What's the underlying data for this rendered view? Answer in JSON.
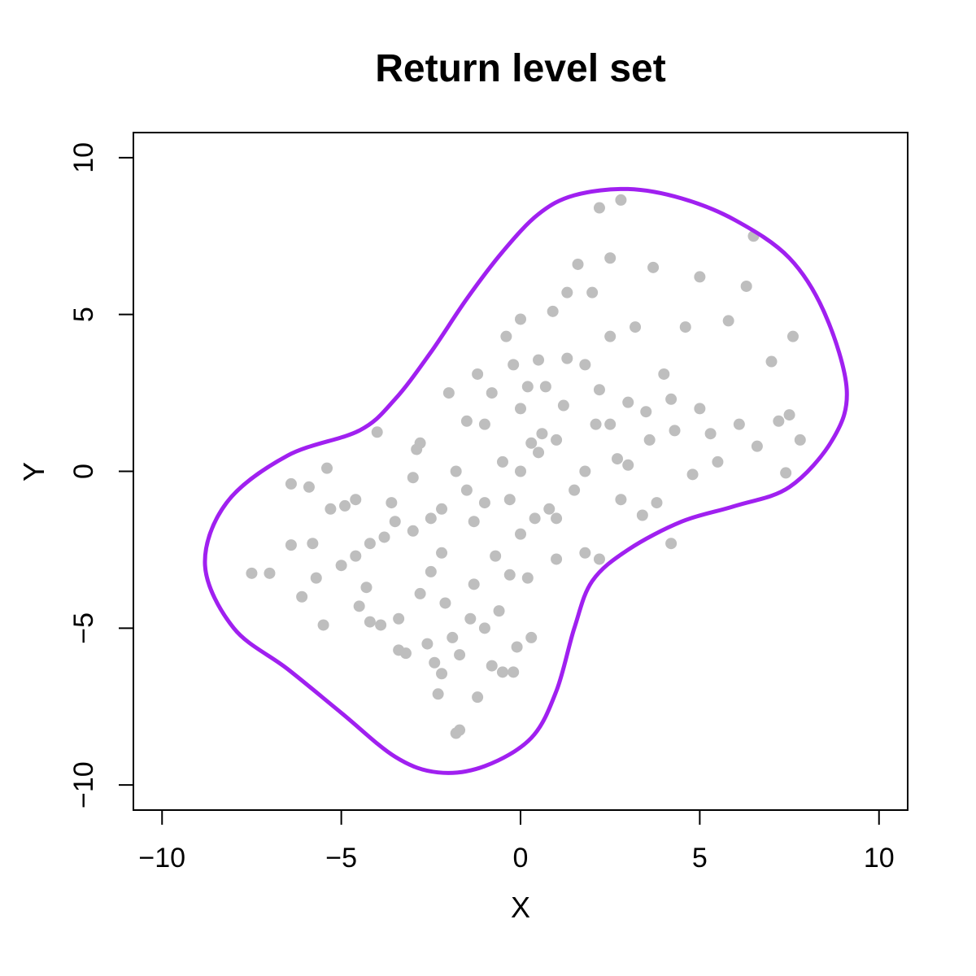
{
  "chart_data": {
    "type": "scatter",
    "title": "Return level set",
    "xlabel": "X",
    "ylabel": "Y",
    "xlim": [
      -10.8,
      10.8
    ],
    "ylim": [
      -10.8,
      10.8
    ],
    "x_ticks": [
      -10,
      -5,
      0,
      5,
      10
    ],
    "y_ticks": [
      -10,
      -5,
      0,
      5,
      10
    ],
    "x_tick_labels": [
      "−10",
      "−5",
      "0",
      "5",
      "10"
    ],
    "y_tick_labels": [
      "−10",
      "−5",
      "0",
      "5",
      "10"
    ],
    "grid": false,
    "colors": {
      "points": "#bebebe",
      "contour": "#a020f0",
      "frame": "#000000"
    },
    "series": [
      {
        "kind": "points",
        "points": [
          [
            -7.5,
            -3.25
          ],
          [
            -7.0,
            -3.25
          ],
          [
            -6.4,
            -0.4
          ],
          [
            -6.4,
            -2.35
          ],
          [
            -6.1,
            -4.0
          ],
          [
            -5.9,
            -0.5
          ],
          [
            -5.8,
            -2.3
          ],
          [
            -5.7,
            -3.4
          ],
          [
            -5.5,
            -4.9
          ],
          [
            -5.4,
            0.1
          ],
          [
            -5.3,
            -1.2
          ],
          [
            -5.0,
            -3.0
          ],
          [
            -4.9,
            -1.1
          ],
          [
            -4.6,
            -0.9
          ],
          [
            -4.6,
            -2.7
          ],
          [
            -4.5,
            -4.3
          ],
          [
            -4.3,
            -3.7
          ],
          [
            -4.2,
            -4.8
          ],
          [
            -4.0,
            1.25
          ],
          [
            -3.9,
            -4.9
          ],
          [
            -3.8,
            -2.1
          ],
          [
            -3.5,
            -1.6
          ],
          [
            -3.4,
            -4.7
          ],
          [
            -3.4,
            -5.7
          ],
          [
            -3.2,
            -5.8
          ],
          [
            -3.0,
            -1.9
          ],
          [
            -2.9,
            0.7
          ],
          [
            -2.8,
            -3.9
          ],
          [
            -2.6,
            -5.5
          ],
          [
            -2.5,
            -3.2
          ],
          [
            -2.4,
            -6.1
          ],
          [
            -2.3,
            -7.1
          ],
          [
            -2.2,
            -6.45
          ],
          [
            -2.2,
            -1.2
          ],
          [
            -2.1,
            -4.2
          ],
          [
            -2.0,
            2.5
          ],
          [
            -1.9,
            -5.3
          ],
          [
            -1.8,
            -8.35
          ],
          [
            -1.7,
            -8.25
          ],
          [
            -1.7,
            -5.85
          ],
          [
            -1.5,
            1.6
          ],
          [
            -1.4,
            -4.7
          ],
          [
            -1.3,
            -1.6
          ],
          [
            -1.2,
            3.1
          ],
          [
            -1.2,
            -7.2
          ],
          [
            -1.0,
            -5.0
          ],
          [
            -0.8,
            -6.2
          ],
          [
            -0.8,
            2.5
          ],
          [
            -0.6,
            -4.45
          ],
          [
            -0.5,
            -6.4
          ],
          [
            -0.4,
            4.3
          ],
          [
            -0.3,
            -3.3
          ],
          [
            -0.2,
            -6.4
          ],
          [
            -0.1,
            -5.6
          ],
          [
            0.0,
            4.85
          ],
          [
            0.2,
            2.7
          ],
          [
            0.3,
            -5.3
          ],
          [
            0.4,
            -1.5
          ],
          [
            0.5,
            3.55
          ],
          [
            0.6,
            1.2
          ],
          [
            0.8,
            -1.2
          ],
          [
            0.9,
            5.1
          ],
          [
            1.0,
            -2.8
          ],
          [
            1.2,
            2.1
          ],
          [
            1.3,
            5.7
          ],
          [
            1.5,
            -0.6
          ],
          [
            1.6,
            6.6
          ],
          [
            1.8,
            3.4
          ],
          [
            1.8,
            -2.6
          ],
          [
            2.0,
            5.7
          ],
          [
            2.1,
            1.5
          ],
          [
            2.2,
            -2.8
          ],
          [
            2.2,
            8.4
          ],
          [
            2.5,
            4.3
          ],
          [
            2.5,
            6.8
          ],
          [
            2.7,
            0.4
          ],
          [
            2.8,
            8.65
          ],
          [
            3.0,
            2.2
          ],
          [
            3.2,
            4.6
          ],
          [
            3.4,
            -1.4
          ],
          [
            3.5,
            1.9
          ],
          [
            3.7,
            6.5
          ],
          [
            3.8,
            -1.0
          ],
          [
            4.0,
            3.1
          ],
          [
            4.2,
            -2.3
          ],
          [
            4.3,
            1.3
          ],
          [
            4.6,
            4.6
          ],
          [
            4.8,
            -0.1
          ],
          [
            5.0,
            2.0
          ],
          [
            5.0,
            6.2
          ],
          [
            5.3,
            1.2
          ],
          [
            5.5,
            0.3
          ],
          [
            5.8,
            4.8
          ],
          [
            6.1,
            1.5
          ],
          [
            6.3,
            5.9
          ],
          [
            6.5,
            7.5
          ],
          [
            6.6,
            0.8
          ],
          [
            7.0,
            3.5
          ],
          [
            7.2,
            1.6
          ],
          [
            7.4,
            -0.05
          ],
          [
            7.5,
            1.8
          ],
          [
            7.6,
            4.3
          ],
          [
            7.8,
            1.0
          ],
          [
            -1.5,
            -0.6
          ],
          [
            -1.0,
            -1.0
          ],
          [
            -0.5,
            0.3
          ],
          [
            0.0,
            0.0
          ],
          [
            0.5,
            0.6
          ],
          [
            1.0,
            1.0
          ],
          [
            -0.3,
            -0.9
          ],
          [
            0.3,
            0.9
          ],
          [
            -2.5,
            -1.5
          ],
          [
            2.5,
            1.5
          ],
          [
            -1.8,
            0.0
          ],
          [
            1.8,
            0.0
          ],
          [
            0.0,
            -2.0
          ],
          [
            0.0,
            2.0
          ],
          [
            -1.0,
            1.5
          ],
          [
            1.0,
            -1.5
          ],
          [
            -3.0,
            -0.2
          ],
          [
            3.0,
            0.2
          ],
          [
            -0.7,
            -2.7
          ],
          [
            0.7,
            2.7
          ],
          [
            -2.2,
            -2.6
          ],
          [
            2.2,
            2.6
          ],
          [
            -1.3,
            -3.6
          ],
          [
            1.3,
            3.6
          ],
          [
            -3.6,
            -1.0
          ],
          [
            3.6,
            1.0
          ],
          [
            -0.2,
            3.4
          ],
          [
            0.2,
            -3.4
          ],
          [
            -2.8,
            0.9
          ],
          [
            2.8,
            -0.9
          ],
          [
            -4.2,
            -2.3
          ],
          [
            4.2,
            2.3
          ]
        ]
      },
      {
        "kind": "contour",
        "points": [
          [
            -4.5,
            1.3
          ],
          [
            -3.5,
            2.3
          ],
          [
            -2.5,
            3.8
          ],
          [
            -1.5,
            5.5
          ],
          [
            -0.5,
            7.0
          ],
          [
            0.5,
            8.2
          ],
          [
            1.5,
            8.8
          ],
          [
            3.0,
            9.0
          ],
          [
            4.5,
            8.7
          ],
          [
            6.0,
            8.0
          ],
          [
            7.5,
            6.8
          ],
          [
            8.5,
            5.0
          ],
          [
            9.1,
            2.6
          ],
          [
            8.7,
            1.0
          ],
          [
            7.5,
            -0.5
          ],
          [
            6.0,
            -1.1
          ],
          [
            4.5,
            -1.6
          ],
          [
            3.0,
            -2.5
          ],
          [
            2.0,
            -3.5
          ],
          [
            1.5,
            -5.0
          ],
          [
            1.0,
            -7.0
          ],
          [
            0.3,
            -8.5
          ],
          [
            -1.0,
            -9.4
          ],
          [
            -2.3,
            -9.6
          ],
          [
            -3.5,
            -9.1
          ],
          [
            -5.0,
            -7.7
          ],
          [
            -6.5,
            -6.3
          ],
          [
            -8.0,
            -5.0
          ],
          [
            -8.8,
            -3.0
          ],
          [
            -8.2,
            -1.0
          ],
          [
            -6.5,
            0.5
          ]
        ]
      }
    ]
  }
}
